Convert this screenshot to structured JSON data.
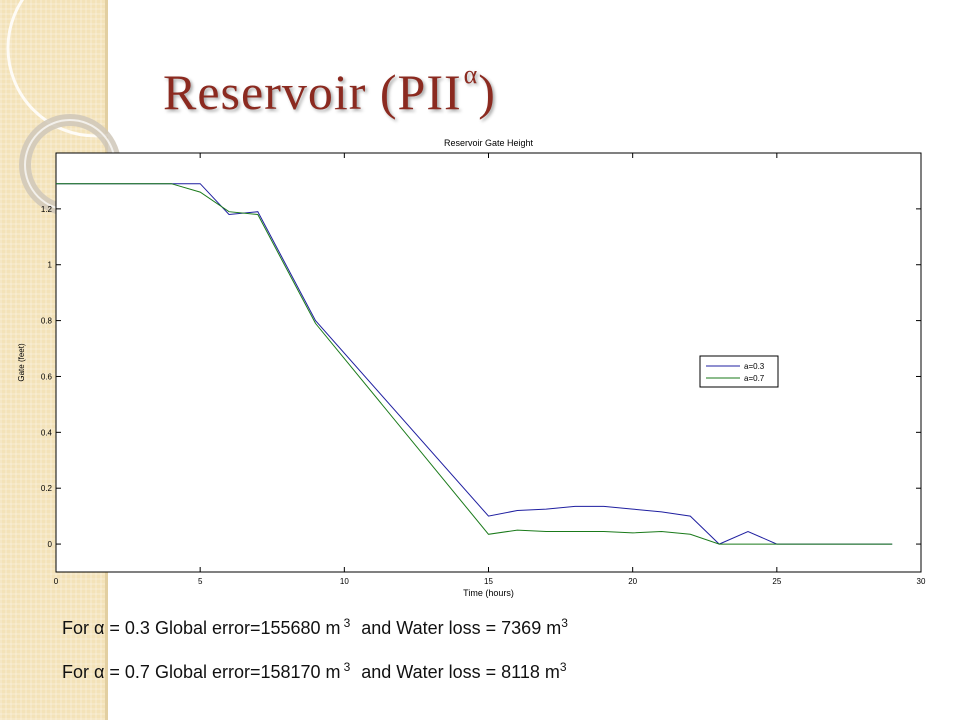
{
  "slide": {
    "title_main": "Reservoir  (PII",
    "title_sup": "α",
    "title_close": ")"
  },
  "notes": [
    {
      "prefix": "For α = 0.3 Global error=155680 m",
      "sup1": "3",
      "middle": "and Water loss = 7369 m",
      "sup2": "3"
    },
    {
      "prefix": "For α = 0.7 Global error=158170 m",
      "sup1": "3",
      "middle": "and Water loss = 8118 m",
      "sup2": "3"
    }
  ],
  "chart_data": {
    "type": "line",
    "title": "Reservoir Gate Height",
    "xlabel": "Time (hours)",
    "ylabel": "Gate (feet)",
    "xlim": [
      0,
      30
    ],
    "ylim": [
      -0.1,
      1.4
    ],
    "xticks": [
      0,
      5,
      10,
      15,
      20,
      25,
      30
    ],
    "yticks": [
      0,
      0.2,
      0.4,
      0.6,
      0.8,
      1,
      1.2
    ],
    "ytick_labels": [
      "0",
      "0.2",
      "0.4",
      "0.6",
      "0.8",
      "1",
      "1.2"
    ],
    "grid": false,
    "legend_position": "center-right",
    "series": [
      {
        "name": "a=0.3",
        "color": "#1f1fa0",
        "x": [
          0,
          4,
          5,
          6,
          7,
          9,
          15,
          16,
          17,
          18,
          19,
          20,
          21,
          22,
          23,
          24,
          25,
          29
        ],
        "y": [
          1.29,
          1.29,
          1.29,
          1.18,
          1.19,
          0.8,
          0.1,
          0.12,
          0.125,
          0.135,
          0.135,
          0.125,
          0.115,
          0.1,
          0.0,
          0.045,
          0.0,
          0.0
        ]
      },
      {
        "name": "a=0.7",
        "color": "#1a7a1a",
        "x": [
          0,
          4,
          5,
          6,
          7,
          9,
          15,
          16,
          17,
          18,
          19,
          20,
          21,
          22,
          23,
          24,
          25,
          29
        ],
        "y": [
          1.29,
          1.29,
          1.26,
          1.19,
          1.18,
          0.79,
          0.035,
          0.05,
          0.045,
          0.045,
          0.045,
          0.04,
          0.045,
          0.035,
          0.0,
          0.0,
          0.0,
          0.0
        ]
      }
    ]
  }
}
